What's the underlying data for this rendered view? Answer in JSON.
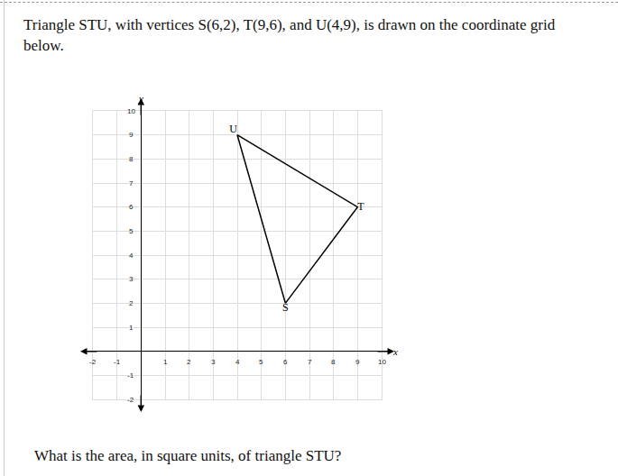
{
  "intro": "Triangle STU, with vertices S(6,2), T(9,6), and U(4,9), is drawn on the coordinate grid below.",
  "chart_data": {
    "type": "line",
    "xlabel": "x",
    "ylabel": "y",
    "labels": [
      "S",
      "T",
      "U"
    ],
    "x": [
      6,
      9,
      4
    ],
    "y": [
      2,
      6,
      9
    ],
    "color": "#000000",
    "xlim": [
      -2,
      10
    ],
    "ylim": [
      -2,
      10
    ],
    "xticks": [
      -2,
      -1,
      1,
      2,
      3,
      4,
      5,
      6,
      7,
      8,
      9,
      10
    ],
    "yticks": [
      -2,
      -1,
      1,
      2,
      3,
      4,
      5,
      6,
      7,
      8,
      9,
      10
    ],
    "grid": true
  },
  "question": "What is the area, in square units, of triangle STU?"
}
